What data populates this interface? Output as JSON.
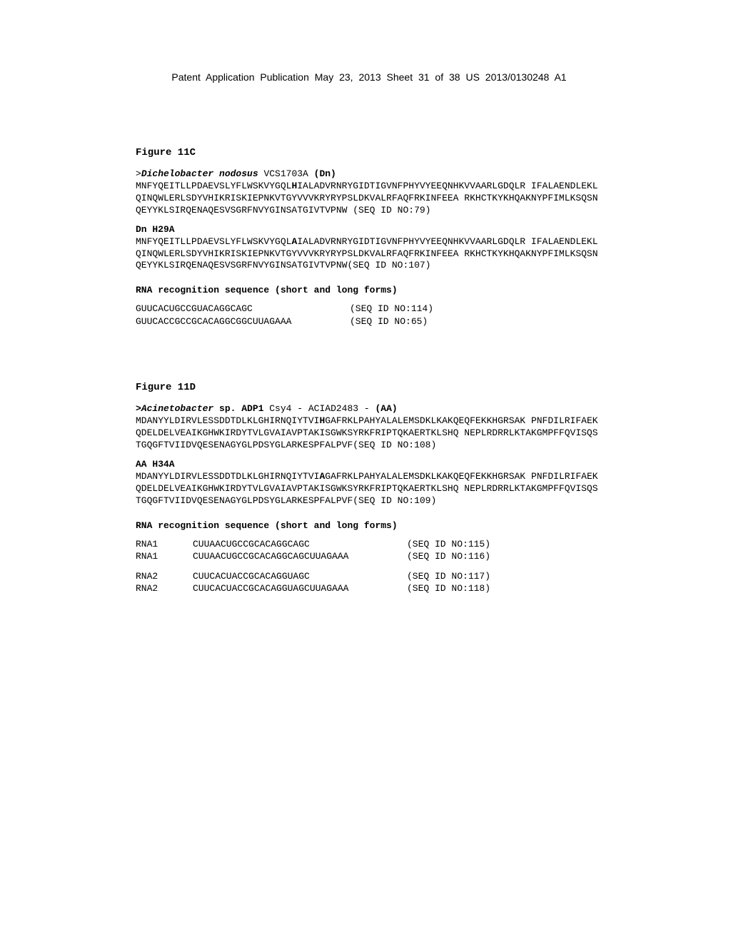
{
  "header": {
    "text": "Patent Application Publication     May 23, 2013  Sheet 31 of 38     US 2013/0130248 A1"
  },
  "figure11C": {
    "title": "Figure 11C",
    "organism": {
      "prefix": ">",
      "species": "Dichelobacter nodosus",
      "strain": " VCS1703A ",
      "abbrev": "(Dn)"
    },
    "wt_sequence": {
      "pre": "MNFYQEITLLPDAEVSLYFLWSKVYGQL",
      "bold": "H",
      "post1": "IALADVRNRYGIDTIGVNFPHYVYEEQNHKVVAARLGDQLR",
      "line2": "IFALAENDLEKLQINQWLERLSDYVHIKRISKIEPNKVTGYVVVKRYRYPSLDKVALRFAQFRKINFEEA",
      "line3": "RKHCTKYKHQAKNYPFIMLKSQSNQEYYKLSIRQENAQESVSGRFNVYGINSATGIVTVPNW  (SEQ ID",
      "line4": "NO:79)"
    },
    "mutant_label": "Dn H29A",
    "mutant_sequence": {
      "pre": "MNFYQEITLLPDAEVSLYFLWSKVYGQL",
      "bold": "A",
      "post1": "IALADVRNRYGIDTIGVNFPHYVYEEQNHKVVAARLGDQLR",
      "line2": "IFALAENDLEKLQINQWLERLSDYVHIKRISKIEPNKVTGYVVVKRYRYPSLDKVALRFAQFRKINFEEA",
      "line3": "RKHCTKYKHQAKNYPFIMLKSQSNQEYYKLSIRQENAQESVSGRFNVYGINSATGIVTVPNW(SEQ ID",
      "line4": "NO:107)"
    },
    "rna_title": "RNA recognition sequence (short and long forms)",
    "rna_rows": [
      {
        "label": "",
        "seq": "GUUCACUGCCGUACAGGCAGC",
        "seqid": "(SEQ ID NO:114)"
      },
      {
        "label": "",
        "seq": "GUUCACCGCCGCACAGGCGGCUUAGAAA",
        "seqid": "(SEQ ID NO:65)"
      }
    ]
  },
  "figure11D": {
    "title": "Figure 11D",
    "organism": {
      "prefix": ">",
      "species": "Acinetobacter",
      "strain_part1": " sp. ADP1",
      "strain_part2": " Csy4 - ACIAD2483 - ",
      "abbrev": "(AA)"
    },
    "wt_sequence": {
      "pre": "MDANYYLDIRVLESSDDTDLKLGHIRNQIYTVI",
      "bold": "H",
      "post1": "GAFRKLPAHYALALEMSDKLKAKQEQFEKKHGRSAK",
      "line2": "PNFDILRIFAEKQDELDELVEAIKGHWKIRDYTVLGVAIAVPTAKISGWKSYRKFRIPTQKAERTKLSHQ",
      "line3": "NEPLRDRRLKTAKGMPFFQVISQSTGQGFTVIIDVQESENAGYGLPDSYGLARKESPFALPVF(SEQ ID",
      "line4": "NO:108)"
    },
    "mutant_label": "AA H34A",
    "mutant_sequence": {
      "pre": "MDANYYLDIRVLESSDDTDLKLGHIRNQIYTVI",
      "bold": "A",
      "post1": "GAFRKLPAHYALALEMSDKLKAKQEQFEKKHGRSAK",
      "line2": "PNFDILRIFAEKQDELDELVEAIKGHWKIRDYTVLGVAIAVPTAKISGWKSYRKFRIPTQKAERTKLSHQ",
      "line3": "NEPLRDRRLKTAKGMPFFQVISQSTGQGFTVIIDVQESENAGYGLPDSYGLARKESPFALPVF(SEQ ID",
      "line4": "NO:109)"
    },
    "rna_title": "RNA recognition sequence (short and long forms)",
    "rna_block1": [
      {
        "label": "RNA1",
        "seq": "CUUAACUGCCGCACAGGCAGC",
        "seqid": "(SEQ ID NO:115)"
      },
      {
        "label": "RNA1",
        "seq": "CUUAACUGCCGCACAGGCAGCUUAGAAA",
        "seqid": "(SEQ ID NO:116)"
      }
    ],
    "rna_block2": [
      {
        "label": "RNA2",
        "seq": "CUUCACUACCGCACAGGUAGC",
        "seqid": "(SEQ ID NO:117)"
      },
      {
        "label": "RNA2",
        "seq": "CUUCACUACCGCACAGGUAGCUUAGAAA",
        "seqid": "(SEQ ID NO:118)"
      }
    ]
  }
}
